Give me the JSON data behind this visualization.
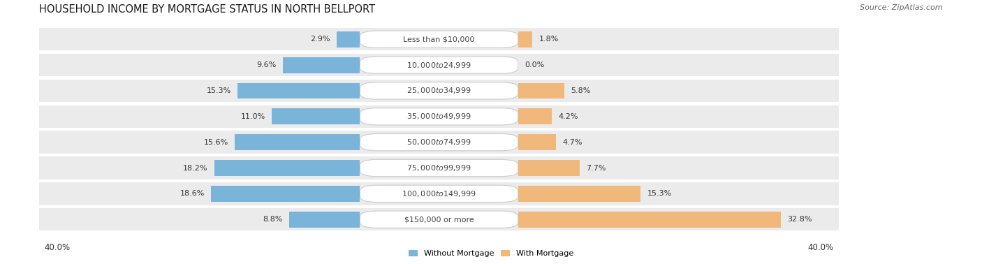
{
  "title": "HOUSEHOLD INCOME BY MORTGAGE STATUS IN NORTH BELLPORT",
  "source": "Source: ZipAtlas.com",
  "categories": [
    "Less than $10,000",
    "$10,000 to $24,999",
    "$25,000 to $34,999",
    "$35,000 to $49,999",
    "$50,000 to $74,999",
    "$75,000 to $99,999",
    "$100,000 to $149,999",
    "$150,000 or more"
  ],
  "without_mortgage": [
    2.9,
    9.6,
    15.3,
    11.0,
    15.6,
    18.2,
    18.6,
    8.8
  ],
  "with_mortgage": [
    1.8,
    0.0,
    5.8,
    4.2,
    4.7,
    7.7,
    15.3,
    32.8
  ],
  "color_without": "#7ab4d8",
  "color_with": "#f0b87a",
  "axis_max": 40.0,
  "row_bg_light": "#ebebeb",
  "row_bg_dark": "#e0e0e0",
  "legend_without": "Without Mortgage",
  "legend_with": "With Mortgage",
  "title_fontsize": 10.5,
  "source_fontsize": 8,
  "label_fontsize": 8,
  "bar_label_fontsize": 8,
  "axis_label_fontsize": 8.5,
  "label_pill_color": "#ffffff",
  "label_text_color": "#444444",
  "value_text_color": "#333333"
}
